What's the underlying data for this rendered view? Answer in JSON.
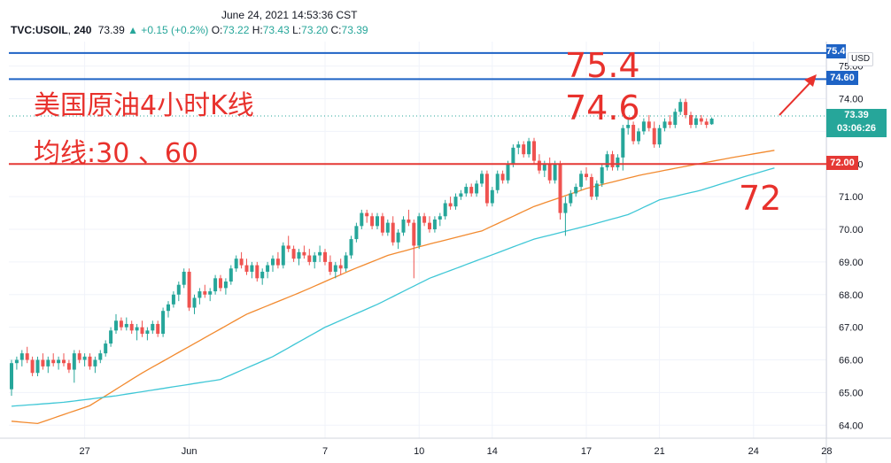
{
  "header": {
    "timestamp": "June 24, 2021 14:53:36 CST",
    "symbol": "TVC:USOIL",
    "timeframe": "240",
    "last": "73.39",
    "change": "▲ +0.15 (+0.2%)",
    "open_label": "O:",
    "open": "73.22",
    "high_label": "H:",
    "high": "73.43",
    "low_label": "L:",
    "low": "73.20",
    "close_label": "C:",
    "close": "73.39"
  },
  "annotations": {
    "title_cn": "美国原油4小时K线",
    "ma_cn": "均线:30 、60",
    "level_754": "75.4",
    "level_746": "74.6",
    "level_72": "72"
  },
  "price_axis": {
    "currency": "USD",
    "last_price": "73.39",
    "countdown": "03:06:26",
    "tag_746": "74.60",
    "tag_72": "72.00",
    "tag_754_partial": "75.40"
  },
  "colors": {
    "up": "#26a69a",
    "down": "#ef5350",
    "ma30": "#f28a2f",
    "ma60": "#3fc7d6",
    "level_blue": "#1e63c5",
    "level_red": "#e53935",
    "annotation": "#e8312c"
  },
  "chart_data": {
    "type": "candlestick",
    "title": "",
    "subtitle": "",
    "xlabel": "",
    "ylabel": "",
    "ylim": [
      63.6,
      75.75
    ],
    "yticks": [
      "64.00",
      "65.00",
      "66.00",
      "67.00",
      "68.00",
      "69.00",
      "70.00",
      "71.00",
      "72.00",
      "73.00",
      "74.00",
      "75.00"
    ],
    "xticks": [
      {
        "label": "27",
        "i": 14
      },
      {
        "label": "Jun",
        "i": 34
      },
      {
        "label": "7",
        "i": 60
      },
      {
        "label": "10",
        "i": 78
      },
      {
        "label": "14",
        "i": 92
      },
      {
        "label": "17",
        "i": 110
      },
      {
        "label": "21",
        "i": 124
      },
      {
        "label": "24",
        "i": 142
      },
      {
        "label": "28",
        "i": 156
      }
    ],
    "horizontal_levels": [
      {
        "price": 75.4,
        "color": "blue"
      },
      {
        "price": 74.6,
        "color": "blue"
      },
      {
        "price": 72.0,
        "color": "red"
      }
    ],
    "series": [
      {
        "name": "MA30",
        "anchors": [
          [
            0,
            64.12
          ],
          [
            5,
            64.05
          ],
          [
            15,
            64.6
          ],
          [
            25,
            65.6
          ],
          [
            35,
            66.5
          ],
          [
            45,
            67.4
          ],
          [
            55,
            68.05
          ],
          [
            65,
            68.75
          ],
          [
            72,
            69.2
          ],
          [
            80,
            69.55
          ],
          [
            90,
            69.95
          ],
          [
            100,
            70.7
          ],
          [
            110,
            71.25
          ],
          [
            120,
            71.65
          ],
          [
            128,
            71.9
          ],
          [
            138,
            72.2
          ],
          [
            146,
            72.42
          ]
        ]
      },
      {
        "name": "MA60",
        "anchors": [
          [
            0,
            64.58
          ],
          [
            10,
            64.7
          ],
          [
            20,
            64.9
          ],
          [
            30,
            65.15
          ],
          [
            40,
            65.4
          ],
          [
            50,
            66.1
          ],
          [
            60,
            67.0
          ],
          [
            70,
            67.7
          ],
          [
            80,
            68.5
          ],
          [
            90,
            69.1
          ],
          [
            100,
            69.7
          ],
          [
            110,
            70.1
          ],
          [
            118,
            70.45
          ],
          [
            124,
            70.9
          ],
          [
            132,
            71.2
          ],
          [
            140,
            71.6
          ],
          [
            146,
            71.88
          ]
        ]
      }
    ],
    "candles": [
      [
        65.1,
        66.0,
        64.9,
        65.9
      ],
      [
        65.9,
        66.1,
        65.7,
        66.0
      ],
      [
        66.0,
        66.3,
        65.8,
        66.2
      ],
      [
        66.2,
        66.4,
        65.9,
        66.0
      ],
      [
        66.0,
        66.1,
        65.5,
        65.6
      ],
      [
        65.6,
        66.1,
        65.5,
        66.0
      ],
      [
        66.0,
        66.2,
        65.7,
        65.8
      ],
      [
        65.8,
        66.1,
        65.6,
        66.0
      ],
      [
        66.0,
        66.2,
        65.8,
        65.9
      ],
      [
        65.9,
        66.1,
        65.7,
        66.0
      ],
      [
        66.0,
        66.2,
        65.8,
        65.9
      ],
      [
        65.9,
        66.0,
        65.6,
        65.7
      ],
      [
        65.7,
        66.3,
        65.3,
        66.2
      ],
      [
        66.2,
        66.3,
        65.9,
        66.0
      ],
      [
        66.0,
        66.2,
        65.8,
        66.1
      ],
      [
        66.1,
        66.2,
        65.7,
        65.8
      ],
      [
        65.8,
        66.1,
        65.6,
        66.0
      ],
      [
        66.0,
        66.3,
        65.9,
        66.2
      ],
      [
        66.2,
        66.6,
        66.1,
        66.5
      ],
      [
        66.5,
        67.0,
        66.4,
        66.9
      ],
      [
        66.9,
        67.4,
        66.8,
        67.2
      ],
      [
        67.2,
        67.3,
        66.9,
        67.0
      ],
      [
        67.0,
        67.3,
        66.9,
        67.1
      ],
      [
        67.1,
        67.2,
        66.8,
        66.9
      ],
      [
        66.9,
        67.1,
        66.6,
        67.0
      ],
      [
        67.0,
        67.2,
        66.7,
        66.8
      ],
      [
        66.8,
        67.0,
        66.6,
        66.9
      ],
      [
        66.9,
        67.2,
        66.8,
        67.1
      ],
      [
        67.1,
        67.2,
        66.7,
        66.8
      ],
      [
        66.8,
        67.6,
        66.7,
        67.5
      ],
      [
        67.5,
        67.8,
        67.3,
        67.7
      ],
      [
        67.7,
        68.1,
        67.6,
        68.0
      ],
      [
        68.0,
        68.4,
        67.8,
        68.3
      ],
      [
        68.3,
        68.8,
        68.2,
        68.7
      ],
      [
        68.7,
        68.8,
        67.5,
        67.6
      ],
      [
        67.6,
        68.0,
        67.4,
        67.9
      ],
      [
        67.9,
        68.2,
        67.7,
        68.1
      ],
      [
        68.1,
        68.3,
        67.9,
        68.0
      ],
      [
        68.0,
        68.2,
        67.8,
        68.1
      ],
      [
        68.1,
        68.6,
        68.0,
        68.5
      ],
      [
        68.5,
        68.6,
        68.1,
        68.2
      ],
      [
        68.2,
        68.5,
        68.0,
        68.4
      ],
      [
        68.4,
        68.9,
        68.3,
        68.8
      ],
      [
        68.8,
        69.2,
        68.7,
        69.1
      ],
      [
        69.1,
        69.3,
        68.8,
        68.9
      ],
      [
        68.9,
        69.1,
        68.6,
        68.7
      ],
      [
        68.7,
        69.0,
        68.5,
        68.9
      ],
      [
        68.9,
        69.0,
        68.4,
        68.5
      ],
      [
        68.5,
        68.8,
        68.3,
        68.7
      ],
      [
        68.7,
        69.0,
        68.5,
        68.9
      ],
      [
        68.9,
        69.2,
        68.7,
        69.1
      ],
      [
        69.1,
        69.3,
        68.8,
        68.9
      ],
      [
        68.9,
        69.6,
        68.8,
        69.5
      ],
      [
        69.5,
        69.8,
        69.3,
        69.4
      ],
      [
        69.4,
        69.5,
        69.0,
        69.1
      ],
      [
        69.1,
        69.4,
        68.9,
        69.3
      ],
      [
        69.3,
        69.5,
        69.1,
        69.2
      ],
      [
        69.2,
        69.4,
        68.9,
        69.0
      ],
      [
        69.0,
        69.3,
        68.8,
        69.2
      ],
      [
        69.2,
        69.5,
        69.0,
        69.3
      ],
      [
        69.3,
        69.4,
        68.9,
        69.0
      ],
      [
        69.0,
        69.2,
        68.6,
        68.7
      ],
      [
        68.7,
        69.0,
        68.5,
        68.9
      ],
      [
        68.9,
        69.1,
        68.6,
        68.8
      ],
      [
        68.8,
        69.3,
        68.7,
        69.2
      ],
      [
        69.2,
        69.8,
        69.1,
        69.7
      ],
      [
        69.7,
        70.2,
        69.6,
        70.1
      ],
      [
        70.1,
        70.6,
        70.0,
        70.5
      ],
      [
        70.5,
        70.6,
        70.2,
        70.4
      ],
      [
        70.4,
        70.5,
        70.0,
        70.1
      ],
      [
        70.1,
        70.5,
        70.0,
        70.4
      ],
      [
        70.4,
        70.5,
        69.8,
        69.9
      ],
      [
        69.9,
        70.3,
        69.8,
        70.2
      ],
      [
        70.2,
        70.4,
        69.5,
        69.6
      ],
      [
        69.6,
        70.0,
        69.4,
        69.9
      ],
      [
        69.9,
        70.4,
        69.8,
        70.3
      ],
      [
        70.3,
        70.6,
        70.1,
        70.2
      ],
      [
        70.2,
        70.3,
        68.5,
        69.5
      ],
      [
        69.5,
        70.5,
        69.4,
        70.4
      ],
      [
        70.4,
        70.5,
        70.1,
        70.2
      ],
      [
        70.2,
        70.4,
        69.9,
        70.0
      ],
      [
        70.0,
        70.4,
        69.9,
        70.3
      ],
      [
        70.3,
        70.5,
        70.1,
        70.4
      ],
      [
        70.4,
        70.9,
        70.3,
        70.8
      ],
      [
        70.8,
        71.0,
        70.6,
        70.7
      ],
      [
        70.7,
        71.1,
        70.6,
        71.0
      ],
      [
        71.0,
        71.2,
        70.9,
        71.1
      ],
      [
        71.1,
        71.4,
        71.0,
        71.3
      ],
      [
        71.3,
        71.4,
        71.0,
        71.1
      ],
      [
        71.1,
        71.5,
        71.0,
        71.4
      ],
      [
        71.4,
        71.8,
        71.3,
        71.7
      ],
      [
        71.7,
        71.8,
        70.7,
        70.8
      ],
      [
        70.8,
        71.3,
        70.7,
        71.2
      ],
      [
        71.2,
        71.8,
        71.1,
        71.7
      ],
      [
        71.7,
        71.8,
        71.4,
        71.5
      ],
      [
        71.5,
        72.1,
        71.4,
        72.0
      ],
      [
        72.0,
        72.6,
        71.9,
        72.5
      ],
      [
        72.5,
        72.7,
        72.3,
        72.6
      ],
      [
        72.6,
        72.7,
        72.2,
        72.3
      ],
      [
        72.3,
        72.8,
        72.2,
        72.7
      ],
      [
        72.7,
        72.8,
        72.0,
        72.1
      ],
      [
        72.1,
        72.3,
        71.7,
        71.8
      ],
      [
        71.8,
        72.1,
        71.6,
        72.0
      ],
      [
        72.0,
        72.2,
        71.4,
        71.5
      ],
      [
        71.5,
        72.1,
        71.4,
        72.0
      ],
      [
        72.0,
        72.1,
        70.3,
        70.5
      ],
      [
        70.5,
        71.0,
        69.8,
        70.8
      ],
      [
        70.8,
        71.2,
        70.7,
        71.1
      ],
      [
        71.1,
        71.4,
        71.0,
        71.3
      ],
      [
        71.3,
        71.8,
        71.2,
        71.7
      ],
      [
        71.7,
        71.9,
        71.5,
        71.6
      ],
      [
        71.6,
        71.7,
        70.9,
        71.0
      ],
      [
        71.0,
        71.5,
        70.9,
        71.4
      ],
      [
        71.4,
        72.0,
        71.3,
        71.9
      ],
      [
        71.9,
        72.4,
        71.8,
        72.3
      ],
      [
        72.3,
        72.4,
        71.8,
        71.9
      ],
      [
        71.9,
        72.3,
        71.8,
        72.2
      ],
      [
        72.2,
        73.2,
        71.8,
        73.1
      ],
      [
        73.1,
        73.4,
        72.9,
        73.2
      ],
      [
        73.2,
        73.3,
        72.6,
        72.7
      ],
      [
        72.7,
        73.1,
        72.6,
        73.0
      ],
      [
        73.0,
        73.4,
        72.9,
        73.3
      ],
      [
        73.3,
        73.5,
        73.0,
        73.1
      ],
      [
        73.1,
        73.3,
        72.5,
        72.6
      ],
      [
        72.6,
        73.2,
        72.5,
        73.1
      ],
      [
        73.1,
        73.4,
        73.0,
        73.3
      ],
      [
        73.3,
        73.5,
        73.1,
        73.2
      ],
      [
        73.2,
        73.7,
        73.1,
        73.6
      ],
      [
        73.6,
        74.0,
        73.5,
        73.9
      ],
      [
        73.9,
        74.0,
        73.4,
        73.5
      ],
      [
        73.5,
        73.6,
        73.1,
        73.2
      ],
      [
        73.2,
        73.5,
        73.1,
        73.4
      ],
      [
        73.4,
        73.5,
        73.2,
        73.3
      ],
      [
        73.3,
        73.4,
        73.1,
        73.2
      ],
      [
        73.22,
        73.43,
        73.2,
        73.39
      ]
    ]
  }
}
